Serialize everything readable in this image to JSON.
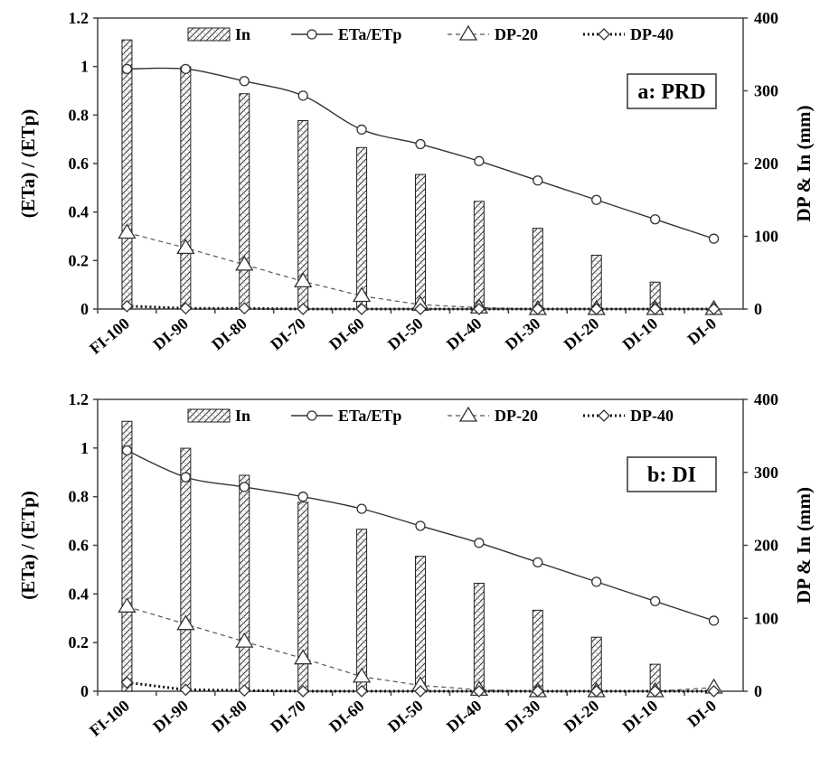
{
  "chart_data": [
    {
      "type": "bar+line",
      "panel_label": "a: PRD",
      "categories": [
        "FI-100",
        "DI-90",
        "DI-80",
        "DI-70",
        "DI-60",
        "DI-50",
        "DI-40",
        "DI-30",
        "DI-20",
        "DI-10",
        "DI-0"
      ],
      "ylabel_left": "(ETa) / (ETp)",
      "ylabel_right": "DP & In (mm)",
      "ylim_left": [
        0,
        1.2
      ],
      "ylim_right": [
        0,
        400
      ],
      "yticks_left": [
        "0",
        "0.2",
        "0.4",
        "0.6",
        "0.8",
        "1",
        "1.2"
      ],
      "yticks_right": [
        "0",
        "100",
        "200",
        "300",
        "400"
      ],
      "legend_position": "top",
      "series": [
        {
          "name": "In",
          "axis": "right",
          "style": "hatched-bar",
          "values": [
            370,
            333,
            296,
            259,
            222,
            185,
            148,
            111,
            74,
            37,
            0
          ]
        },
        {
          "name": "ETa/ETp",
          "axis": "left",
          "style": "solid-circle",
          "values": [
            0.99,
            0.99,
            0.94,
            0.88,
            0.74,
            0.68,
            0.61,
            0.53,
            0.45,
            0.37,
            0.29
          ]
        },
        {
          "name": "DP-20",
          "axis": "right",
          "style": "dashed-triangle",
          "values": [
            105,
            84,
            61,
            38,
            18,
            6,
            2,
            0,
            0,
            0,
            0
          ]
        },
        {
          "name": "DP-40",
          "axis": "right",
          "style": "dotted-diamond",
          "values": [
            4,
            1,
            1,
            0,
            0,
            0,
            0,
            0,
            0,
            0,
            0
          ]
        }
      ]
    },
    {
      "type": "bar+line",
      "panel_label": "b: DI",
      "categories": [
        "FI-100",
        "DI-90",
        "DI-80",
        "DI-70",
        "DI-60",
        "DI-50",
        "DI-40",
        "DI-30",
        "DI-20",
        "DI-10",
        "DI-0"
      ],
      "ylabel_left": "(ETa) / (ETp)",
      "ylabel_right": "DP & In (mm)",
      "ylim_left": [
        0,
        1.2
      ],
      "ylim_right": [
        0,
        400
      ],
      "yticks_left": [
        "0",
        "0.2",
        "0.4",
        "0.6",
        "0.8",
        "1",
        "1.2"
      ],
      "yticks_right": [
        "0",
        "100",
        "200",
        "300",
        "400"
      ],
      "legend_position": "top",
      "series": [
        {
          "name": "In",
          "axis": "right",
          "style": "hatched-bar",
          "values": [
            370,
            333,
            296,
            259,
            222,
            185,
            148,
            111,
            74,
            37,
            0
          ]
        },
        {
          "name": "ETa/ETp",
          "axis": "left",
          "style": "solid-circle",
          "values": [
            0.99,
            0.88,
            0.84,
            0.8,
            0.75,
            0.68,
            0.61,
            0.53,
            0.45,
            0.37,
            0.29
          ]
        },
        {
          "name": "DP-20",
          "axis": "right",
          "style": "dashed-triangle",
          "values": [
            116,
            92,
            68,
            45,
            20,
            8,
            2,
            0,
            0,
            0,
            5
          ]
        },
        {
          "name": "DP-40",
          "axis": "right",
          "style": "dotted-diamond",
          "values": [
            12,
            2,
            1,
            0,
            0,
            0,
            0,
            0,
            0,
            0,
            0
          ]
        }
      ]
    }
  ]
}
